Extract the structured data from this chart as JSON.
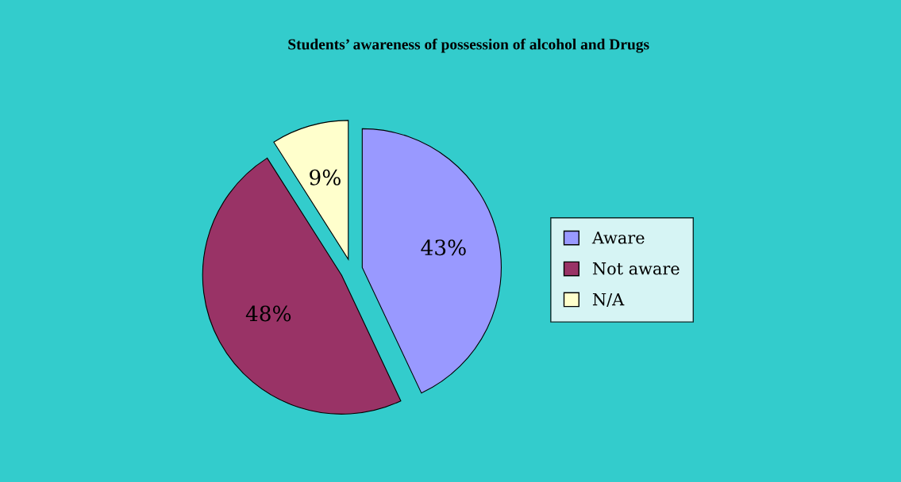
{
  "chart_data": {
    "type": "pie",
    "title": "Students’ awareness of possession of alcohol and Drugs",
    "categories": [
      "Aware",
      "Not aware",
      "N/A"
    ],
    "values": [
      43,
      48,
      9
    ],
    "value_labels": [
      "43%",
      "48%",
      "9%"
    ],
    "colors": [
      "#9999ff",
      "#993366",
      "#ffffcc"
    ],
    "legend": "right"
  }
}
